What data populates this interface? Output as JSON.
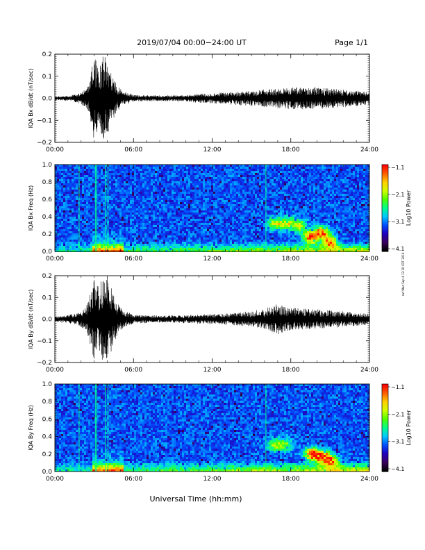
{
  "header": {
    "title": "2019/07/04  00:00−24:00 UT",
    "page": "Page 1/1"
  },
  "footer": {
    "xlabel": "Universal Time (hh:mm)",
    "stamp": "rwf Wed Sep 4 13:30 CDT 2019"
  },
  "colors": {
    "trace": "#000000",
    "colormap": [
      "#000000",
      "#3b0060",
      "#2000c0",
      "#0050ff",
      "#00c8ff",
      "#00ff8c",
      "#50ff00",
      "#d0ff00",
      "#ffd000",
      "#ff6000",
      "#ff0000"
    ]
  },
  "chart_data": [
    {
      "type": "line",
      "ylabel": "IQA Bx dB/dt (nT/sec)",
      "xlim": [
        0,
        24
      ],
      "ylim": [
        -0.2,
        0.2
      ],
      "yticks": [
        "0.2",
        "0.1",
        "0.0",
        "−0.1",
        "−0.2"
      ],
      "xticks": [
        "00:00",
        "06:00",
        "12:00",
        "18:00",
        "24:00"
      ],
      "envelope": {
        "hours": [
          0,
          1,
          1.8,
          2.3,
          2.6,
          3.0,
          3.3,
          3.7,
          4.0,
          4.4,
          4.8,
          5.2,
          6,
          8,
          10,
          11,
          12,
          13,
          14,
          15,
          16,
          17,
          18,
          19,
          20,
          21,
          22,
          23,
          24
        ],
        "amplitude": [
          0.008,
          0.01,
          0.02,
          0.04,
          0.06,
          0.2,
          0.13,
          0.2,
          0.17,
          0.1,
          0.06,
          0.03,
          0.015,
          0.012,
          0.014,
          0.02,
          0.025,
          0.025,
          0.03,
          0.035,
          0.04,
          0.045,
          0.05,
          0.05,
          0.05,
          0.045,
          0.04,
          0.035,
          0.03
        ]
      }
    },
    {
      "type": "heatmap",
      "ylabel": "IQA Bx Freq (Hz)",
      "xlim": [
        0,
        24
      ],
      "ylim": [
        0,
        1.0
      ],
      "yticks": [
        "1.0",
        "0.8",
        "0.6",
        "0.4",
        "0.2",
        "0.0"
      ],
      "xticks": [
        "00:00",
        "06:00",
        "12:00",
        "18:00",
        "24:00"
      ],
      "colorbar": {
        "label": "Log10 Power",
        "range": [
          -4.1,
          -1.1
        ],
        "ticks": [
          "−1.1",
          "−2.1",
          "−3.1",
          "−4.1"
        ]
      },
      "vertical_lines_hours": [
        1.85,
        3.1,
        3.2,
        3.85,
        4.05,
        16.1
      ],
      "blobs": [
        {
          "hour": 16.8,
          "freq": 0.33,
          "strength": 0.55
        },
        {
          "hour": 17.7,
          "freq": 0.33,
          "strength": 0.5
        },
        {
          "hour": 18.6,
          "freq": 0.3,
          "strength": 0.5
        },
        {
          "hour": 19.5,
          "freq": 0.17,
          "strength": 0.8
        },
        {
          "hour": 20.3,
          "freq": 0.22,
          "strength": 0.75
        },
        {
          "hour": 21.0,
          "freq": 0.12,
          "strength": 0.7
        }
      ]
    },
    {
      "type": "line",
      "ylabel": "IQA By dB/dt (nT/sec)",
      "xlim": [
        0,
        24
      ],
      "ylim": [
        -0.2,
        0.2
      ],
      "yticks": [
        "0.2",
        "0.1",
        "0.0",
        "−0.1",
        "−0.2"
      ],
      "xticks": [
        "00:00",
        "06:00",
        "12:00",
        "18:00",
        "24:00"
      ],
      "envelope": {
        "hours": [
          0,
          1,
          1.8,
          2.3,
          2.6,
          3.0,
          3.3,
          3.7,
          4.0,
          4.4,
          4.8,
          5.2,
          6,
          8,
          10,
          12,
          13,
          14,
          15,
          16,
          16.5,
          17,
          17.5,
          18,
          19,
          20,
          21,
          22,
          23,
          24
        ],
        "amplitude": [
          0.012,
          0.018,
          0.03,
          0.05,
          0.09,
          0.2,
          0.15,
          0.2,
          0.2,
          0.14,
          0.07,
          0.04,
          0.02,
          0.015,
          0.018,
          0.022,
          0.025,
          0.03,
          0.035,
          0.045,
          0.06,
          0.07,
          0.06,
          0.05,
          0.05,
          0.045,
          0.04,
          0.035,
          0.03,
          0.025
        ]
      }
    },
    {
      "type": "heatmap",
      "ylabel": "IQA By Freq (Hz)",
      "xlim": [
        0,
        24
      ],
      "ylim": [
        0,
        1.0
      ],
      "yticks": [
        "1.0",
        "0.8",
        "0.6",
        "0.4",
        "0.2",
        "0.0"
      ],
      "xticks": [
        "00:00",
        "06:00",
        "12:00",
        "18:00",
        "24:00"
      ],
      "colorbar": {
        "label": "Log10 Power",
        "range": [
          -4.1,
          -1.1
        ],
        "ticks": [
          "−1.1",
          "−2.1",
          "−3.1",
          "−4.1"
        ]
      },
      "vertical_lines_hours": [
        1.85,
        3.1,
        3.2,
        3.85,
        4.05,
        16.1
      ],
      "blobs": [
        {
          "hour": 16.8,
          "freq": 0.3,
          "strength": 0.45
        },
        {
          "hour": 17.6,
          "freq": 0.3,
          "strength": 0.4
        },
        {
          "hour": 19.6,
          "freq": 0.2,
          "strength": 0.85
        },
        {
          "hour": 20.4,
          "freq": 0.17,
          "strength": 0.8
        },
        {
          "hour": 21.1,
          "freq": 0.12,
          "strength": 0.7
        }
      ]
    }
  ]
}
